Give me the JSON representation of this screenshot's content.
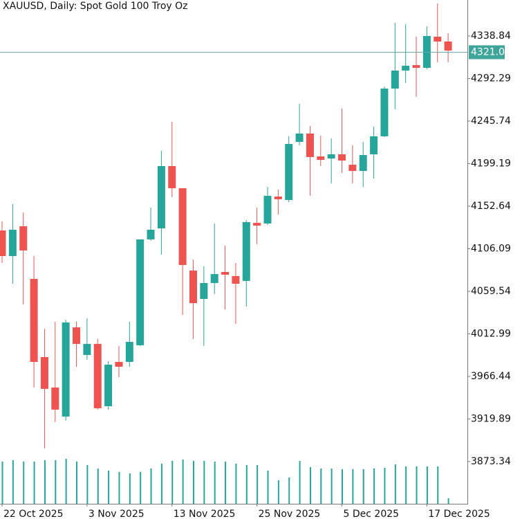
{
  "chart_data": {
    "type": "candlestick",
    "title": "XAUUSD, Daily:  Spot Gold 100 Troy Oz",
    "categories": [
      "22 Oct 2025",
      null,
      null,
      null,
      null,
      null,
      null,
      null,
      "3 Nov 2025",
      null,
      null,
      null,
      null,
      null,
      null,
      null,
      "13 Nov 2025",
      null,
      null,
      null,
      null,
      null,
      null,
      null,
      "25 Nov 2025",
      null,
      null,
      null,
      null,
      null,
      null,
      null,
      "5 Dec 2025",
      null,
      null,
      null,
      null,
      null,
      null,
      null,
      "17 Dec 2025",
      null,
      null
    ],
    "open": [
      4126.1,
      4098.1,
      4130.7,
      4073.1,
      3987.6,
      3954.3,
      3922.5,
      4020.1,
      3989.9,
      4002.0,
      3933.8,
      3982.3,
      3982.3,
      4000.5,
      4116.3,
      4128.4,
      4196.5,
      4172.3,
      4082.2,
      4051.2,
      4068.6,
      4080.7,
      4076.2,
      4070.9,
      4134.4,
      4133.7,
      4163.2,
      4159.4,
      4223.0,
      4232.1,
      4207.1,
      4204.8,
      4209.4,
      4198.0,
      4191.2,
      4209.4,
      4229.1,
      4281.3,
      4301.0,
      4307.0,
      4304.0,
      4338.1,
      4332.8
    ],
    "high": [
      4136.0,
      4154.9,
      4145.8,
      4098.1,
      4018.6,
      4026.2,
      4028.5,
      4026.2,
      4030.0,
      4007.3,
      3983.0,
      3999.7,
      4026.2,
      4116.3,
      4151.1,
      4213.2,
      4245.0,
      4172.3,
      4094.3,
      4086.8,
      4133.7,
      4109.5,
      4090.5,
      4137.5,
      4151.1,
      4173.8,
      4170.8,
      4229.1,
      4264.6,
      4240.4,
      4229.8,
      4226.8,
      4259.4,
      4219.2,
      4223.0,
      4239.7,
      4283.6,
      4353.2,
      4351.7,
      4338.1,
      4349.4,
      4374.4,
      4341.9
    ],
    "low": [
      4090.5,
      4067.8,
      4045.1,
      3954.3,
      3887.7,
      3916.4,
      3918.0,
      3977.0,
      3984.6,
      3930.1,
      3930.1,
      3965.6,
      3977.0,
      3999.7,
      4114.8,
      4099.6,
      4162.5,
      4033.8,
      4007.3,
      3999.7,
      4056.5,
      4039.8,
      4023.9,
      4042.8,
      4111.0,
      4132.2,
      4143.5,
      4157.2,
      4219.2,
      4164.0,
      4196.5,
      4177.6,
      4189.0,
      4177.6,
      4173.8,
      4182.9,
      4228.3,
      4258.6,
      4287.4,
      4272.2,
      4302.5,
      4310.1,
      4310.1
    ],
    "close": [
      4098.1,
      4126.9,
      4104.2,
      3982.3,
      3952.8,
      3930.1,
      4025.4,
      4002.0,
      4002.0,
      3931.6,
      3979.3,
      3977.0,
      4004.2,
      4116.3,
      4126.9,
      4196.5,
      4172.3,
      4088.3,
      4046.6,
      4068.6,
      4078.4,
      4077.7,
      4067.8,
      4135.2,
      4131.4,
      4164.0,
      4160.2,
      4220.7,
      4232.1,
      4206.4,
      4203.3,
      4209.4,
      4202.6,
      4191.2,
      4208.6,
      4229.1,
      4281.3,
      4301.0,
      4306.3,
      4304.0,
      4338.8,
      4332.8,
      4322.9
    ],
    "volume": [
      61,
      63,
      61,
      61,
      63,
      63,
      65,
      61,
      56,
      51,
      48,
      46,
      44,
      46,
      51,
      58,
      62,
      64,
      62,
      62,
      61,
      61,
      58,
      56,
      56,
      48,
      34,
      38,
      62,
      53,
      51,
      51,
      50,
      50,
      50,
      51,
      52,
      57,
      54,
      54,
      54,
      54,
      8
    ],
    "up_color": "#26a69a",
    "down_color": "#ef5350",
    "current_price": 4321.05,
    "ylim": [
      3827.1,
      4378.2
    ],
    "yticks": [
      4338.84,
      4292.29,
      4245.74,
      4199.19,
      4152.64,
      4106.09,
      4059.54,
      4012.99,
      3966.44,
      3919.89,
      3873.34
    ]
  }
}
